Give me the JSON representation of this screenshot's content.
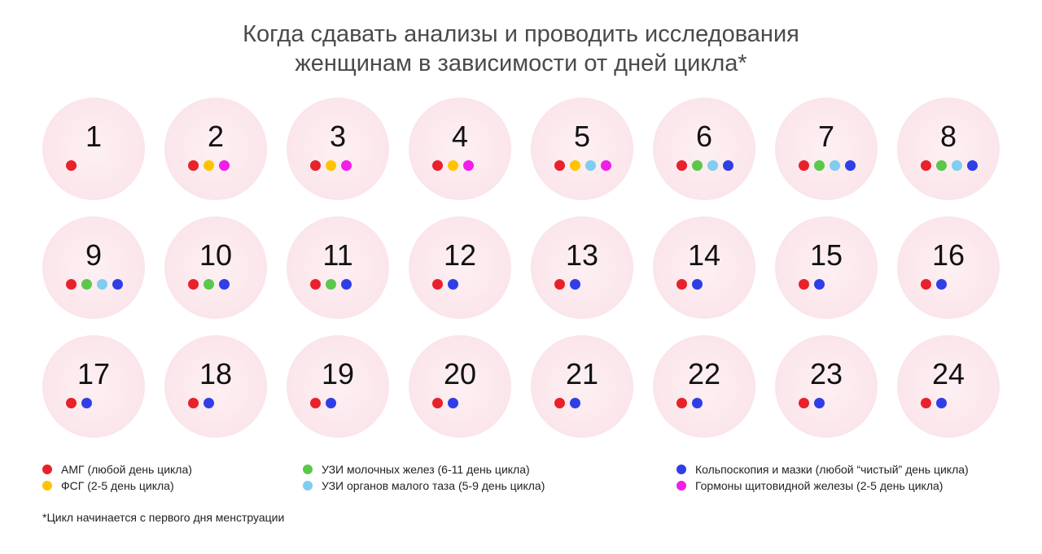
{
  "title": {
    "line1": "Когда сдавать анализы и проводить исследования",
    "line2": "женщинам в зависимости от дней цикла*"
  },
  "tests": {
    "amg": {
      "color": "#e8212b",
      "label": "АМГ (любой день цикла)"
    },
    "fsg": {
      "color": "#ffc400",
      "label": "ФСГ (2-5 день цикла)"
    },
    "breast": {
      "color": "#5ac84a",
      "label": "УЗИ молочных желез (6-11 день цикла)"
    },
    "pelvic": {
      "color": "#7fcdf0",
      "label": "УЗИ органов малого таза (5-9 день цикла)"
    },
    "colpo": {
      "color": "#2f3ee6",
      "label": "Кольпоскопия и мазки (любой “чистый” день цикла)"
    },
    "thyroid": {
      "color": "#f01ee8",
      "label": "Гормоны щитовидной железы (2-5 день цикла)"
    }
  },
  "days": [
    {
      "day": "1",
      "tests": [
        "amg"
      ]
    },
    {
      "day": "2",
      "tests": [
        "amg",
        "fsg",
        "thyroid"
      ]
    },
    {
      "day": "3",
      "tests": [
        "amg",
        "fsg",
        "thyroid"
      ]
    },
    {
      "day": "4",
      "tests": [
        "amg",
        "fsg",
        "thyroid"
      ]
    },
    {
      "day": "5",
      "tests": [
        "amg",
        "fsg",
        "pelvic",
        "thyroid"
      ]
    },
    {
      "day": "6",
      "tests": [
        "amg",
        "breast",
        "pelvic",
        "colpo"
      ]
    },
    {
      "day": "7",
      "tests": [
        "amg",
        "breast",
        "pelvic",
        "colpo"
      ]
    },
    {
      "day": "8",
      "tests": [
        "amg",
        "breast",
        "pelvic",
        "colpo"
      ]
    },
    {
      "day": "9",
      "tests": [
        "amg",
        "breast",
        "pelvic",
        "colpo"
      ]
    },
    {
      "day": "10",
      "tests": [
        "amg",
        "breast",
        "colpo"
      ]
    },
    {
      "day": "11",
      "tests": [
        "amg",
        "breast",
        "colpo"
      ]
    },
    {
      "day": "12",
      "tests": [
        "amg",
        "colpo"
      ]
    },
    {
      "day": "13",
      "tests": [
        "amg",
        "colpo"
      ]
    },
    {
      "day": "14",
      "tests": [
        "amg",
        "colpo"
      ]
    },
    {
      "day": "15",
      "tests": [
        "amg",
        "colpo"
      ]
    },
    {
      "day": "16",
      "tests": [
        "amg",
        "colpo"
      ]
    },
    {
      "day": "17",
      "tests": [
        "amg",
        "colpo"
      ]
    },
    {
      "day": "18",
      "tests": [
        "amg",
        "colpo"
      ]
    },
    {
      "day": "19",
      "tests": [
        "amg",
        "colpo"
      ]
    },
    {
      "day": "20",
      "tests": [
        "amg",
        "colpo"
      ]
    },
    {
      "day": "21",
      "tests": [
        "amg",
        "colpo"
      ]
    },
    {
      "day": "22",
      "tests": [
        "amg",
        "colpo"
      ]
    },
    {
      "day": "23",
      "tests": [
        "amg",
        "colpo"
      ]
    },
    {
      "day": "24",
      "tests": [
        "amg",
        "colpo"
      ]
    }
  ],
  "legend": [
    [
      "amg",
      "fsg"
    ],
    [
      "breast",
      "pelvic"
    ],
    [
      "colpo",
      "thyroid"
    ]
  ],
  "footnote": "*Цикл начинается с первого дня менструации"
}
